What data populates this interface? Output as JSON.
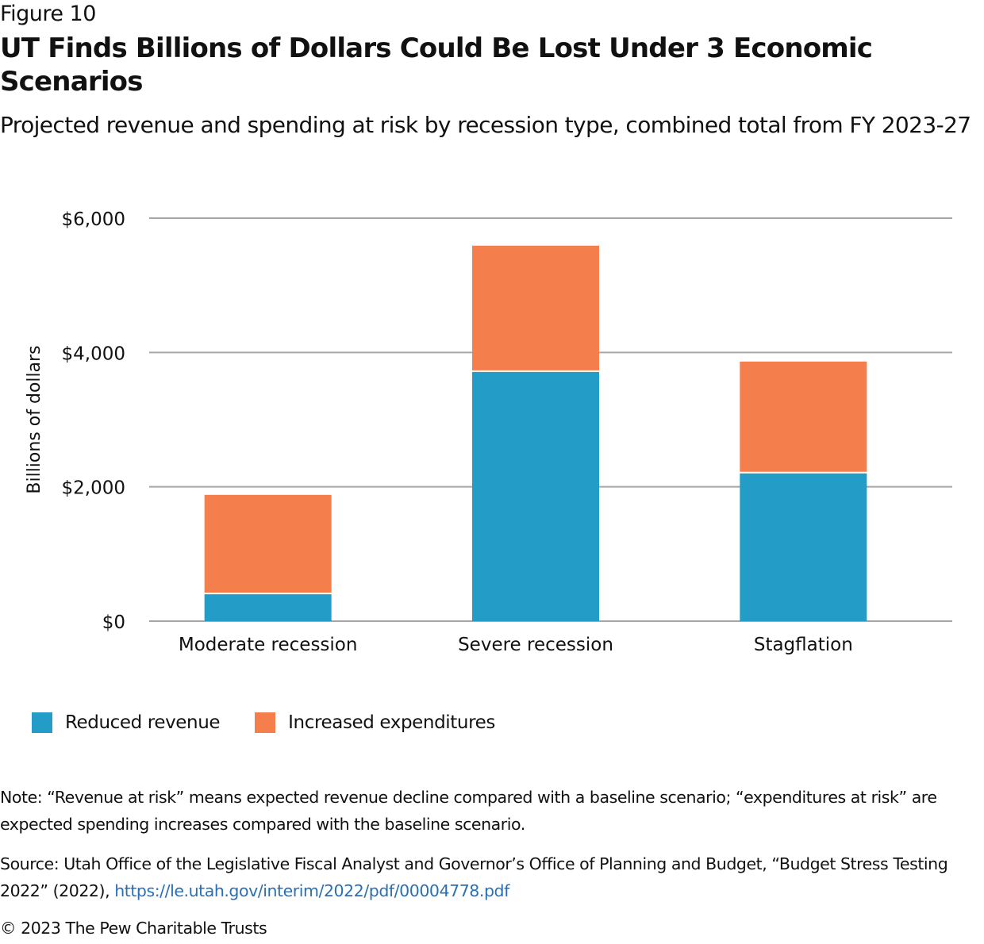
{
  "figure_label": "Figure 10",
  "title": "UT Finds Billions of Dollars Could Be Lost Under 3 Economic Scenarios",
  "subtitle": "Projected revenue and spending at risk by recession type, combined total from FY 2023-27",
  "chart_data": {
    "type": "bar",
    "stacked": true,
    "title": "UT Finds Billions of Dollars Could Be Lost Under 3 Economic Scenarios",
    "xlabel": "",
    "ylabel": "Billions of dollars",
    "ylim": [
      0,
      6000
    ],
    "yticks": [
      0,
      2000,
      4000,
      6000
    ],
    "ytick_labels": [
      "$0",
      "$2,000",
      "$4,000",
      "$6,000"
    ],
    "grid": true,
    "categories": [
      "Moderate recession",
      "Severe recession",
      "Stagflation"
    ],
    "series": [
      {
        "name": "Reduced revenue",
        "color": "#239dc7",
        "values": [
          400,
          3710,
          2200
        ]
      },
      {
        "name": "Increased expenditures",
        "color": "#f47f4d",
        "values": [
          1480,
          1880,
          1665
        ]
      }
    ],
    "legend_position": "bottom-left"
  },
  "note": "Note: “Revenue at risk” means expected revenue decline compared with a baseline scenario; “expenditures at risk” are expected spending increases compared with the baseline scenario.",
  "source": {
    "text": "Source: Utah Office of the Legislative Fiscal Analyst and Governor’s Office of Planning and Budget, “Budget Stress Testing 2022” (2022), ",
    "link": "https://le.utah.gov/interim/2022/pdf/00004778.pdf",
    "link_color": "#2a6fb5"
  },
  "copyright": "© 2023 The Pew Charitable Trusts",
  "colors": {
    "gridline": "#a6a6a6",
    "revenue": "#239dc7",
    "expenditures": "#f47f4d"
  }
}
